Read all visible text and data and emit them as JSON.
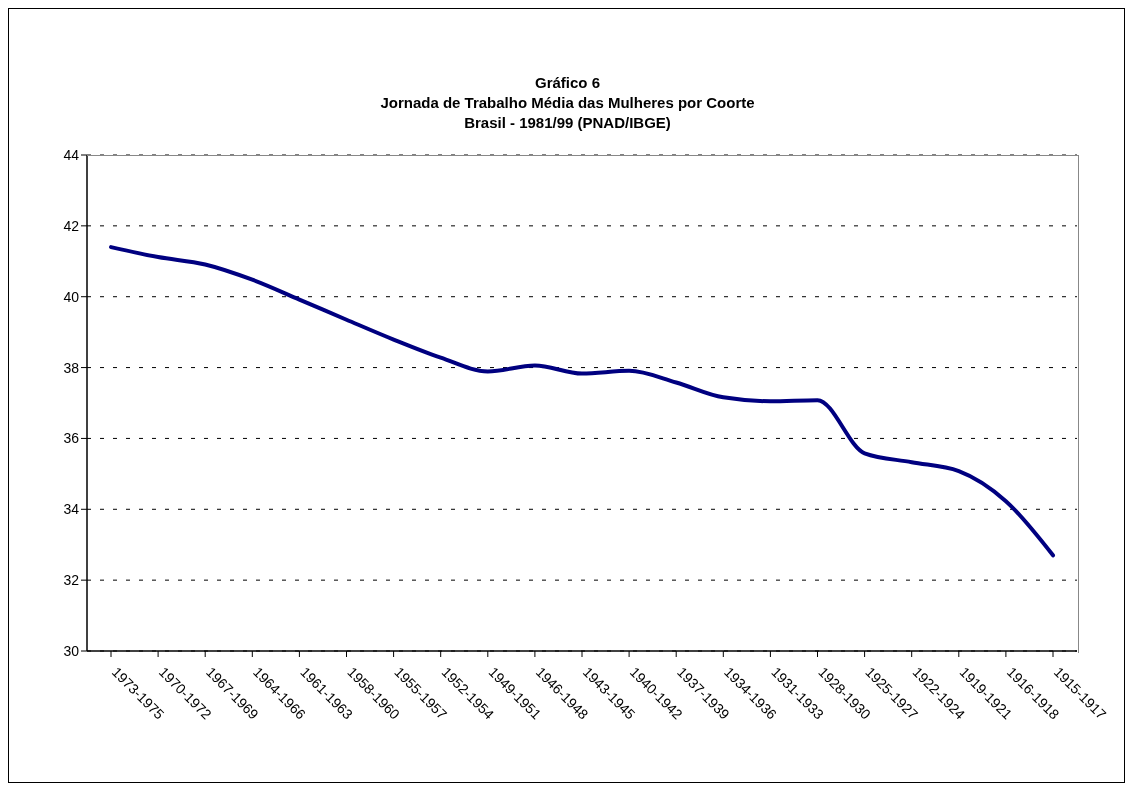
{
  "chart_data": {
    "type": "line",
    "title": "Gráfico 6\nJornada de Trabalho Média das Mulheres por Coorte\nBrasil - 1981/99 (PNAD/IBGE)",
    "categories": [
      "1973-1975",
      "1970-1972",
      "1967-1969",
      "1964-1966",
      "1961-1963",
      "1958-1960",
      "1955-1957",
      "1952-1954",
      "1949-1951",
      "1946-1948",
      "1943-1945",
      "1940-1942",
      "1937-1939",
      "1934-1936",
      "1931-1933",
      "1928-1930",
      "1925-1927",
      "1922-1924",
      "1919-1921",
      "1916-1918",
      "1915-1917"
    ],
    "series": [
      {
        "color": "#000080",
        "values": [
          41.4,
          41.12,
          40.91,
          40.48,
          39.92,
          39.35,
          38.79,
          38.28,
          37.89,
          38.06,
          37.83,
          37.91,
          37.58,
          37.16,
          37.05,
          37.08,
          35.58,
          35.33,
          35.08,
          34.23,
          32.7
        ]
      }
    ],
    "ylim": [
      30,
      44
    ],
    "yticks": [
      30,
      32,
      34,
      36,
      38,
      40,
      42,
      44
    ],
    "grid": "y",
    "marker": "none",
    "line_style": "solid"
  }
}
